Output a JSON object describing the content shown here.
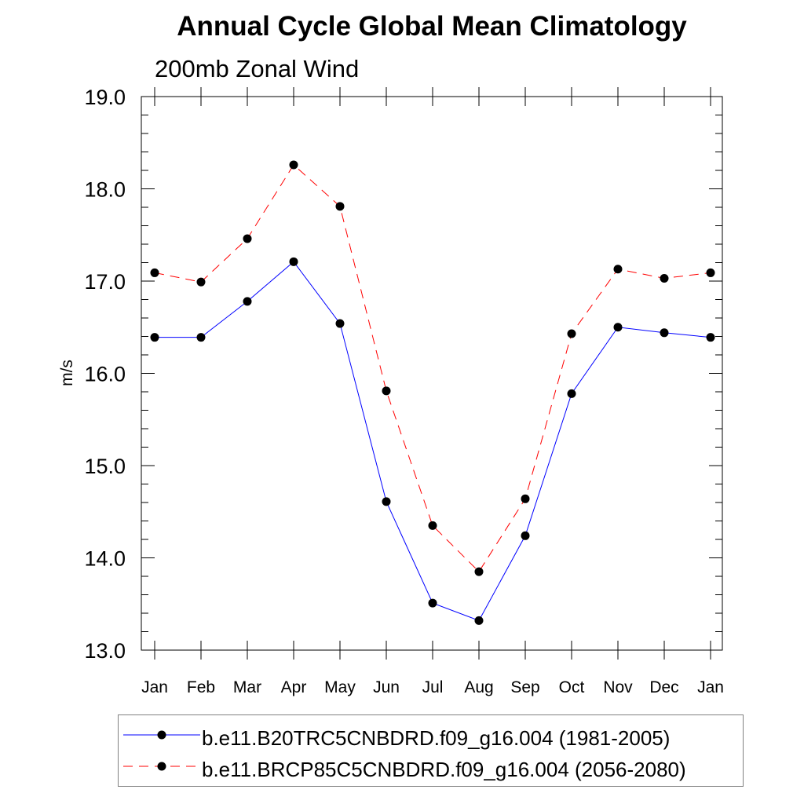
{
  "title": "Annual Cycle Global Mean Climatology",
  "subtitle": "200mb Zonal Wind",
  "chart_data": {
    "type": "line",
    "title": "Annual Cycle Global Mean Climatology",
    "subtitle": "200mb Zonal Wind",
    "xlabel": "",
    "ylabel": "m/s",
    "categories": [
      "Jan",
      "Feb",
      "Mar",
      "Apr",
      "May",
      "Jun",
      "Jul",
      "Aug",
      "Sep",
      "Oct",
      "Nov",
      "Dec",
      "Jan"
    ],
    "ylim": [
      13.0,
      19.0
    ],
    "yticks": [
      "13.0",
      "14.0",
      "15.0",
      "16.0",
      "17.0",
      "18.0",
      "19.0"
    ],
    "grid": false,
    "legend_position": "bottom",
    "series": [
      {
        "name": "b.e11.B20TRC5CNBDRD.f09_g16.004 (1981-2005)",
        "color": "#0000ff",
        "dash": "solid",
        "marker": "filled-circle",
        "values": [
          16.39,
          16.39,
          16.78,
          17.21,
          16.54,
          14.61,
          13.51,
          13.32,
          14.24,
          15.78,
          16.5,
          16.44,
          16.39
        ]
      },
      {
        "name": "b.e11.BRCP85C5CNBDRD.f09_g16.004 (2056-2080)",
        "color": "#ff0000",
        "dash": "dashed",
        "marker": "filled-circle",
        "values": [
          17.09,
          16.99,
          17.46,
          18.26,
          17.81,
          15.81,
          14.35,
          13.85,
          14.64,
          16.43,
          17.13,
          17.03,
          17.09
        ]
      }
    ]
  }
}
